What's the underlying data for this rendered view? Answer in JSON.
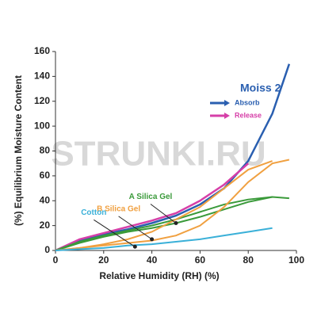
{
  "chart_data": {
    "type": "line",
    "xlabel": "Relative Humidity (RH) (%)",
    "ylabel": "(%) Equilibrium Moisture Content",
    "watermark": "STRUNKI.RU",
    "legend_title": "Moiss 2",
    "x": [
      0,
      10,
      20,
      30,
      40,
      50,
      60,
      70,
      80,
      90,
      97
    ],
    "series": [
      {
        "name": "Absorb",
        "color": "#2a5fb0",
        "values": [
          0,
          8,
          13,
          17,
          22,
          28,
          37,
          50,
          72,
          110,
          150
        ]
      },
      {
        "name": "Release",
        "color": "#d63fa8",
        "values": [
          0,
          9,
          14,
          19,
          24,
          30,
          40,
          53,
          70,
          null,
          null
        ]
      },
      {
        "color": "#3a9a3a",
        "values": [
          0,
          6,
          11,
          15,
          18,
          22,
          27,
          33,
          39,
          43,
          42
        ]
      },
      {
        "color": "#3a9a3a",
        "values": [
          0,
          7,
          12,
          16,
          20,
          25,
          31,
          37,
          41,
          43,
          null
        ]
      },
      {
        "color": "#f0a040",
        "values": [
          0,
          2,
          4,
          6,
          8,
          12,
          20,
          35,
          55,
          70,
          73
        ]
      },
      {
        "color": "#f0a040",
        "values": [
          0,
          2,
          5,
          9,
          15,
          25,
          35,
          50,
          65,
          72,
          null
        ]
      },
      {
        "color": "#3ab0d8",
        "values": [
          0,
          1,
          2,
          4,
          5,
          7,
          9,
          12,
          15,
          18,
          null
        ]
      }
    ],
    "annotations": [
      {
        "text": "A Silica Gel",
        "x": 50,
        "y": 22
      },
      {
        "text": "B Silica Gel",
        "x": 40,
        "y": 9
      },
      {
        "text": "Cotton",
        "x": 33,
        "y": 3
      }
    ],
    "xlim": [
      0,
      100
    ],
    "xticks": [
      0,
      20,
      40,
      60,
      80,
      100
    ],
    "ylim": [
      0,
      160
    ],
    "yticks": [
      0,
      20,
      40,
      60,
      80,
      100,
      120,
      140,
      160
    ]
  }
}
